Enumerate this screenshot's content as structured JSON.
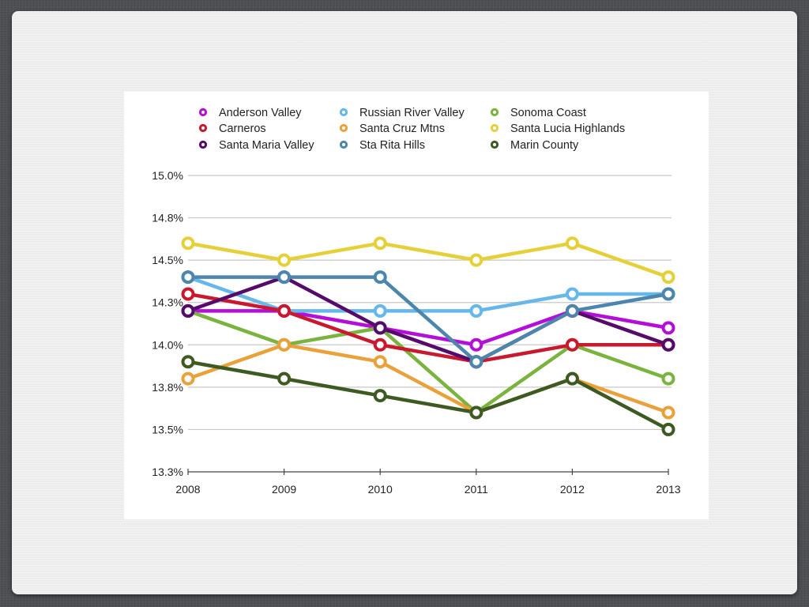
{
  "chart_data": {
    "type": "line",
    "title": "",
    "xlabel": "",
    "ylabel": "",
    "x": [
      "2008",
      "2009",
      "2010",
      "2011",
      "2012",
      "2013"
    ],
    "y_ticks": [
      "13.3%",
      "13.5%",
      "13.8%",
      "14.0%",
      "14.3%",
      "14.5%",
      "14.8%",
      "15.0%"
    ],
    "y_tick_values": [
      13.25,
      13.5,
      13.75,
      14.0,
      14.25,
      14.5,
      14.75,
      15.0
    ],
    "ylim": [
      13.25,
      15.0
    ],
    "grid": true,
    "legend_position": "top",
    "series": [
      {
        "name": "Anderson Valley",
        "color": "#b40fd8",
        "values": [
          14.2,
          14.2,
          14.1,
          14.0,
          14.2,
          14.1
        ]
      },
      {
        "name": "Russian River Valley",
        "color": "#66b7ea",
        "values": [
          14.4,
          14.2,
          14.2,
          14.2,
          14.3,
          14.3
        ]
      },
      {
        "name": "Sonoma Coast",
        "color": "#7ab33e",
        "values": [
          14.2,
          14.0,
          14.1,
          13.6,
          14.0,
          13.8
        ]
      },
      {
        "name": "Carneros",
        "color": "#c8192f",
        "values": [
          14.3,
          14.2,
          14.0,
          13.9,
          14.0,
          14.0
        ]
      },
      {
        "name": "Santa Cruz Mtns",
        "color": "#e9a23b",
        "values": [
          13.8,
          14.0,
          13.9,
          13.6,
          13.8,
          13.6
        ]
      },
      {
        "name": "Santa Lucia Highlands",
        "color": "#e6d03a",
        "values": [
          14.6,
          14.5,
          14.6,
          14.5,
          14.6,
          14.4
        ]
      },
      {
        "name": "Santa Maria Valley",
        "color": "#560a6a",
        "values": [
          14.2,
          14.4,
          14.1,
          13.9,
          14.2,
          14.0
        ]
      },
      {
        "name": "Sta Rita Hills",
        "color": "#4d86ad",
        "values": [
          14.4,
          14.4,
          14.4,
          13.9,
          14.2,
          14.3
        ]
      },
      {
        "name": "Marin County",
        "color": "#3e5a23",
        "values": [
          13.9,
          13.8,
          13.7,
          13.6,
          13.8,
          13.5
        ]
      }
    ]
  }
}
